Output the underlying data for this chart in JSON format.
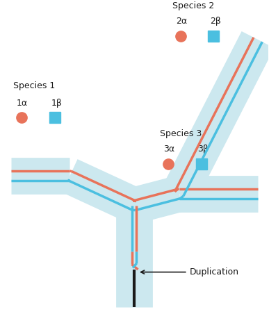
{
  "bg_color": "#ffffff",
  "band_color": "#cce8ef",
  "orange_color": "#e8735a",
  "blue_color": "#4bbfe0",
  "dark_color": "#1a1a1a",
  "species1_label": "Species 1",
  "species2_label": "Species 2",
  "species3_label": "Species 3",
  "alpha1": "1α",
  "beta1": "1β",
  "alpha2": "2α",
  "beta2": "2β",
  "alpha3": "3α",
  "beta3": "3β",
  "duplication_label": "Duplication",
  "band_lw": 38,
  "line_lw": 2.5,
  "marker_size": 11
}
